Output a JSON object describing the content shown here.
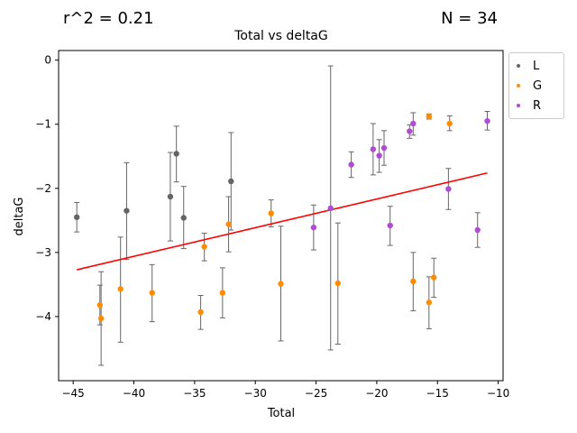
{
  "header": {
    "r2_text": "r^2 = 0.21",
    "n_text": "N = 34"
  },
  "chart_data": {
    "type": "scatter",
    "title": "Total vs deltaG",
    "xlabel": "Total",
    "ylabel": "deltaG",
    "xlim": [
      -46.2,
      -9.6
    ],
    "ylim": [
      -5.0,
      0.15
    ],
    "xticks": [
      -45,
      -40,
      -35,
      -30,
      -25,
      -20,
      -15,
      -10
    ],
    "yticks": [
      0,
      -1,
      -2,
      -3,
      -4
    ],
    "xtick_labels": [
      "−45",
      "−40",
      "−35",
      "−30",
      "−25",
      "−20",
      "−15",
      "−10"
    ],
    "ytick_labels": [
      "0",
      "−1",
      "−2",
      "−3",
      "−4"
    ],
    "legend_position": "outside-right-top",
    "grid": false,
    "regression_line": {
      "x": [
        -44.7,
        -10.9
      ],
      "y": [
        -3.27,
        -1.76
      ],
      "color": "#ff0000"
    },
    "series": [
      {
        "name": "L",
        "color": "#646464",
        "points": [
          {
            "x": -44.7,
            "y": -2.45,
            "lo": -2.68,
            "hi": -2.22
          },
          {
            "x": -40.6,
            "y": -2.35,
            "lo": -3.11,
            "hi": -1.6
          },
          {
            "x": -37.0,
            "y": -2.13,
            "lo": -2.82,
            "hi": -1.44
          },
          {
            "x": -36.5,
            "y": -1.46,
            "lo": -1.9,
            "hi": -1.03
          },
          {
            "x": -35.9,
            "y": -2.46,
            "lo": -2.94,
            "hi": -1.97
          },
          {
            "x": -32.0,
            "y": -1.89,
            "lo": -2.65,
            "hi": -1.13
          }
        ]
      },
      {
        "name": "G",
        "color": "#ff8c00",
        "points": [
          {
            "x": -42.8,
            "y": -3.82,
            "lo": -4.13,
            "hi": -3.51
          },
          {
            "x": -42.7,
            "y": -4.03,
            "lo": -4.76,
            "hi": -3.3
          },
          {
            "x": -41.1,
            "y": -3.57,
            "lo": -4.4,
            "hi": -2.76
          },
          {
            "x": -38.5,
            "y": -3.63,
            "lo": -4.08,
            "hi": -3.19
          },
          {
            "x": -34.5,
            "y": -3.93,
            "lo": -4.2,
            "hi": -3.67
          },
          {
            "x": -34.2,
            "y": -2.91,
            "lo": -3.13,
            "hi": -2.7
          },
          {
            "x": -32.7,
            "y": -3.63,
            "lo": -4.02,
            "hi": -3.24
          },
          {
            "x": -32.2,
            "y": -2.56,
            "lo": -2.99,
            "hi": -2.13
          },
          {
            "x": -28.7,
            "y": -2.39,
            "lo": -2.6,
            "hi": -2.18
          },
          {
            "x": -27.9,
            "y": -3.49,
            "lo": -4.38,
            "hi": -2.59
          },
          {
            "x": -23.2,
            "y": -3.48,
            "lo": -4.43,
            "hi": -2.54
          },
          {
            "x": -17.0,
            "y": -3.45,
            "lo": -3.91,
            "hi": -3.0
          },
          {
            "x": -15.7,
            "y": -3.78,
            "lo": -4.19,
            "hi": -3.38
          },
          {
            "x": -15.7,
            "y": -0.88,
            "lo": -0.92,
            "hi": -0.84
          },
          {
            "x": -15.3,
            "y": -3.39,
            "lo": -3.7,
            "hi": -3.09
          },
          {
            "x": -14.0,
            "y": -0.99,
            "lo": -1.1,
            "hi": -0.87
          }
        ]
      },
      {
        "name": "R",
        "color": "#b24bd4",
        "points": [
          {
            "x": -25.2,
            "y": -2.61,
            "lo": -2.96,
            "hi": -2.26
          },
          {
            "x": -23.8,
            "y": -2.31,
            "lo": -4.52,
            "hi": -0.09
          },
          {
            "x": -22.1,
            "y": -1.63,
            "lo": -1.83,
            "hi": -1.43
          },
          {
            "x": -20.3,
            "y": -1.39,
            "lo": -1.79,
            "hi": -0.99
          },
          {
            "x": -19.8,
            "y": -1.49,
            "lo": -1.75,
            "hi": -1.24
          },
          {
            "x": -19.4,
            "y": -1.37,
            "lo": -1.64,
            "hi": -1.1
          },
          {
            "x": -18.9,
            "y": -2.58,
            "lo": -2.89,
            "hi": -2.28
          },
          {
            "x": -17.3,
            "y": -1.11,
            "lo": -1.22,
            "hi": -1.01
          },
          {
            "x": -17.0,
            "y": -0.99,
            "lo": -1.17,
            "hi": -0.82
          },
          {
            "x": -14.1,
            "y": -2.01,
            "lo": -2.33,
            "hi": -1.69
          },
          {
            "x": -11.7,
            "y": -2.65,
            "lo": -2.92,
            "hi": -2.38
          },
          {
            "x": -10.9,
            "y": -0.95,
            "lo": -1.09,
            "hi": -0.8
          }
        ]
      }
    ]
  }
}
